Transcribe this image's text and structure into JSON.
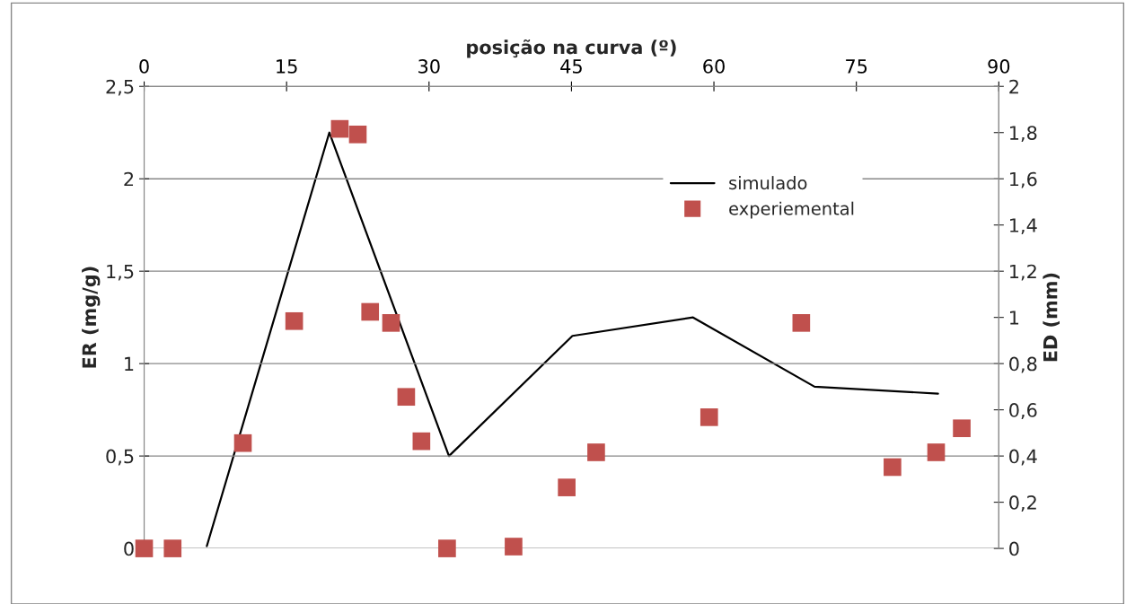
{
  "chart_data": {
    "type": "scatter",
    "xlabel": "posição na curva (º)",
    "ylabel": "ER (mg/g)",
    "y2label": "ED (mm)",
    "xlim": [
      0,
      90
    ],
    "xticks": [
      0,
      15,
      30,
      45,
      60,
      75,
      90
    ],
    "ylim": [
      0,
      2.5
    ],
    "yticks": [
      0,
      {
        "value": 0.5,
        "label": "0,5"
      },
      1,
      {
        "value": 1.5,
        "label": "1,5"
      },
      2,
      {
        "value": 2.5,
        "label": "2,5"
      }
    ],
    "y2lim": [
      0,
      2
    ],
    "y2ticks": [
      0,
      {
        "value": 0.2,
        "label": "0,2"
      },
      {
        "value": 0.4,
        "label": "0,4"
      },
      {
        "value": 0.6,
        "label": "0,6"
      },
      {
        "value": 0.8,
        "label": "0,8"
      },
      1,
      {
        "value": 1.2,
        "label": "1,2"
      },
      {
        "value": 1.4,
        "label": "1,4"
      },
      {
        "value": 1.6,
        "label": "1,6"
      },
      {
        "value": 1.8,
        "label": "1,8"
      },
      2
    ],
    "grid": "y",
    "legend": "top right",
    "series": [
      {
        "name": "simulado",
        "type": "line",
        "axis": "y2",
        "color": "#000000",
        "marker": "none",
        "line_style": "solid",
        "x": [
          6.6,
          19.5,
          32.1,
          45.1,
          57.8,
          70.6,
          83.6
        ],
        "values": [
          0.01,
          1.8,
          0.4,
          0.92,
          1.0,
          0.7,
          0.67
        ]
      },
      {
        "name": "experiemental",
        "color": "#c0504d",
        "marker": "square",
        "x": [
          0,
          3,
          10.4,
          15.8,
          20.6,
          22.5,
          23.8,
          26,
          27.6,
          29.2,
          31.9,
          38.9,
          44.5,
          47.6,
          59.5,
          69.2,
          78.8,
          83.4,
          86.1
        ],
        "values": [
          0,
          0,
          0.57,
          1.23,
          2.27,
          2.24,
          1.28,
          1.22,
          0.82,
          0.58,
          0,
          0.01,
          0.33,
          0.52,
          0.71,
          1.22,
          0.44,
          0.52,
          0.65
        ]
      }
    ]
  }
}
